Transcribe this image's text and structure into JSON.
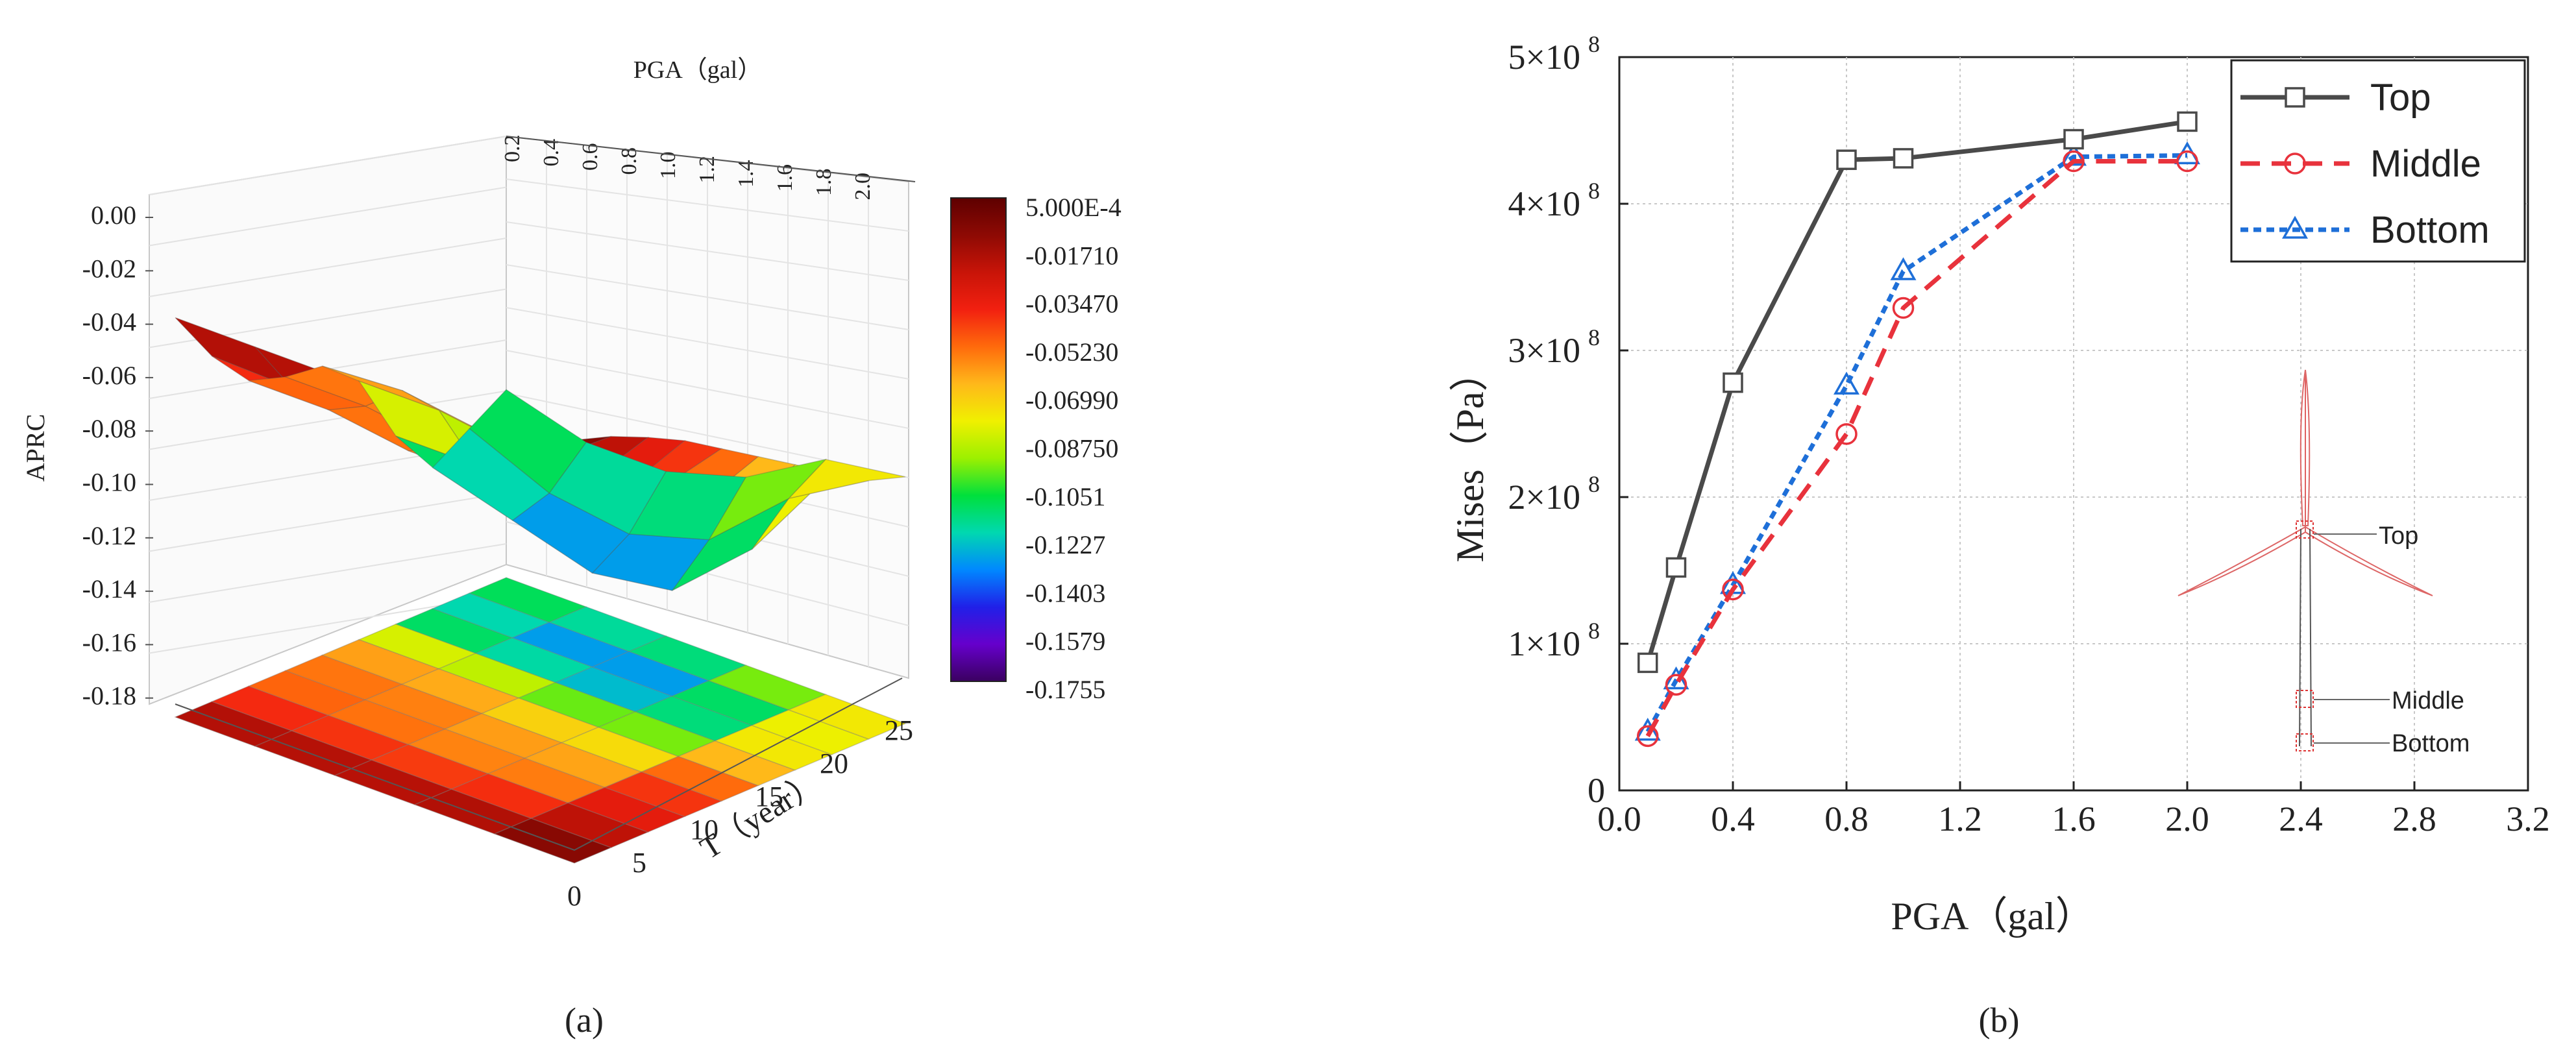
{
  "chart_data": [
    {
      "panel": "a",
      "panel_label": "(a)",
      "type": "surface3d",
      "zlabel": "APRC",
      "xlabel": "PGA（gal）",
      "ylabel": "T（year）",
      "pga_ticks": [
        "0.2",
        "0.4",
        "0.6",
        "0.8",
        "1.0",
        "1.2",
        "1.4",
        "1.6",
        "1.8",
        "2.0"
      ],
      "t_ticks": [
        "0",
        "5",
        "10",
        "15",
        "20",
        "25"
      ],
      "z_ticks": [
        "0.00",
        "-0.02",
        "-0.04",
        "-0.06",
        "-0.08",
        "-0.10",
        "-0.12",
        "-0.14",
        "-0.16",
        "-0.18"
      ],
      "zlim": [
        -0.18,
        0.0
      ],
      "colorbar": {
        "labels": [
          "5.000E-4",
          "-0.01710",
          "-0.03470",
          "-0.05230",
          "-0.06990",
          "-0.08750",
          "-0.1051",
          "-0.1227",
          "-0.1403",
          "-0.1579",
          "-0.1755"
        ],
        "colors": [
          "#5e0000",
          "#8e0a04",
          "#c81408",
          "#f22010",
          "#ff6a0c",
          "#ffb81a",
          "#f0f000",
          "#9cf000",
          "#00e03c",
          "#00d8b0",
          "#0088ff",
          "#2020e8",
          "#6600cc",
          "#3a0060"
        ]
      },
      "pga": [
        0.2,
        0.4,
        0.6,
        0.8,
        1.0,
        1.2,
        1.4,
        1.6,
        1.8,
        2.0
      ],
      "t_rows": [
        0,
        5,
        10,
        15,
        20,
        25
      ],
      "aprc": [
        [
          0.0,
          -0.005,
          -0.012,
          -0.02,
          -0.03,
          -0.04,
          -0.05,
          -0.06,
          -0.07,
          -0.075
        ],
        [
          -0.01,
          -0.03,
          -0.05,
          -0.06,
          -0.065,
          -0.08,
          -0.1,
          -0.105,
          -0.09,
          -0.08
        ],
        [
          -0.01,
          -0.035,
          -0.055,
          -0.062,
          -0.068,
          -0.09,
          -0.12,
          -0.135,
          -0.12,
          -0.1
        ],
        [
          -0.01,
          -0.035,
          -0.055,
          -0.06,
          -0.06,
          -0.075,
          -0.11,
          -0.14,
          -0.13,
          -0.11
        ],
        [
          -0.01,
          -0.034,
          -0.05,
          -0.055,
          -0.055,
          -0.07,
          -0.1,
          -0.13,
          -0.125,
          -0.11
        ],
        [
          -0.01,
          -0.033,
          -0.05,
          -0.055,
          -0.057,
          -0.07,
          -0.1,
          -0.12,
          -0.11,
          -0.1
        ]
      ]
    },
    {
      "panel": "b",
      "panel_label": "(b)",
      "type": "line",
      "xlabel": "PGA（gal）",
      "ylabel": "Mises（Pa）",
      "xlim": [
        0.0,
        3.2
      ],
      "ylim": [
        0,
        500000000
      ],
      "x_ticks": [
        "0.0",
        "0.4",
        "0.8",
        "1.2",
        "1.6",
        "2.0",
        "2.4",
        "2.8",
        "3.2"
      ],
      "y_ticks": [
        {
          "mant": "0",
          "exp": ""
        },
        {
          "mant": "1×10",
          "exp": "8"
        },
        {
          "mant": "2×10",
          "exp": "8"
        },
        {
          "mant": "3×10",
          "exp": "8"
        },
        {
          "mant": "4×10",
          "exp": "8"
        },
        {
          "mant": "5×10",
          "exp": "8"
        }
      ],
      "x": [
        0.1,
        0.2,
        0.4,
        0.8,
        1.0,
        1.6,
        2.0
      ],
      "series": [
        {
          "name": "Top",
          "color": "#4a4a4a",
          "marker": "square",
          "dash": "solid",
          "values": [
            87000000,
            152000000,
            278000000,
            430000000,
            431000000,
            444000000,
            456000000
          ]
        },
        {
          "name": "Middle",
          "color": "#e8323c",
          "marker": "circle",
          "dash": "longdash",
          "values": [
            37000000,
            72000000,
            137000000,
            243000000,
            329000000,
            429000000,
            429000000
          ]
        },
        {
          "name": "Bottom",
          "color": "#1e6fd8",
          "marker": "triangle",
          "dash": "dotted",
          "values": [
            40000000,
            75000000,
            140000000,
            276000000,
            354000000,
            432000000,
            433000000
          ]
        }
      ],
      "inset_labels": [
        "Top",
        "Middle",
        "Bottom"
      ]
    }
  ]
}
